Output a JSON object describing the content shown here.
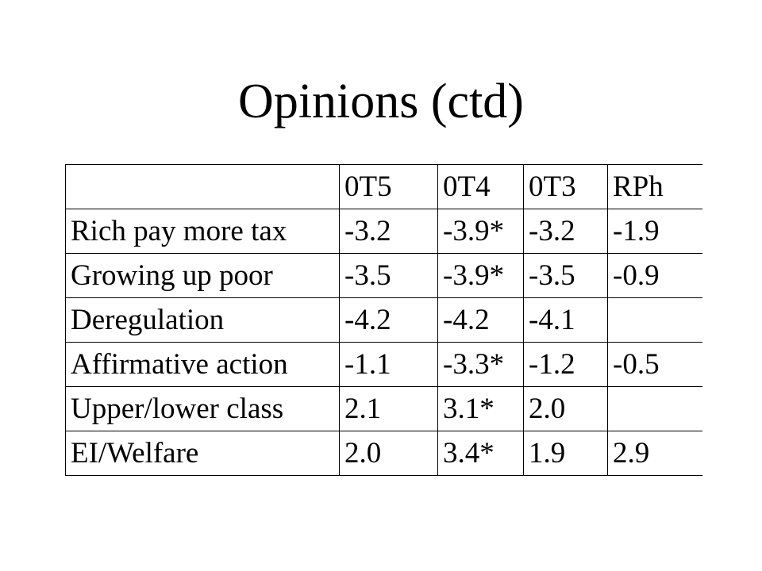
{
  "slide": {
    "title": "Opinions (ctd)"
  },
  "table": {
    "header": [
      "",
      "0T5",
      "0T4",
      "0T3",
      "RPh"
    ],
    "rows": [
      [
        "Rich pay more tax",
        "-3.2",
        "-3.9*",
        "-3.2",
        "-1.9"
      ],
      [
        "Growing up poor",
        "-3.5",
        "-3.9*",
        "-3.5",
        "-0.9"
      ],
      [
        "Deregulation",
        "-4.2",
        "-4.2",
        "-4.1",
        ""
      ],
      [
        "Affirmative action",
        "-1.1",
        "-3.3*",
        "-1.2",
        "-0.5"
      ],
      [
        "Upper/lower class",
        "2.1",
        "3.1*",
        "2.0",
        ""
      ],
      [
        "EI/Welfare",
        "2.0",
        "3.4*",
        "1.9",
        "2.9"
      ]
    ]
  }
}
